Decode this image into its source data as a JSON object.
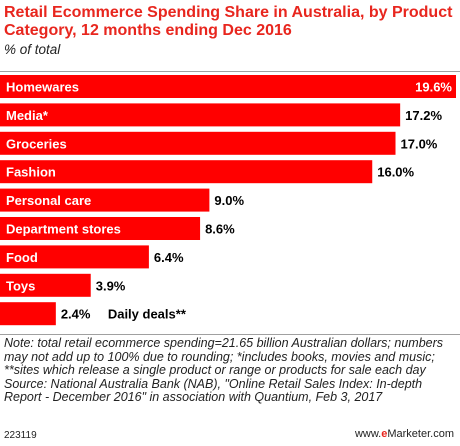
{
  "header": {
    "title": "Retail Ecommerce Spending Share in Australia, by Product Category, 12 months ending Dec 2016",
    "subtitle": "% of total"
  },
  "chart_data": {
    "type": "bar",
    "orientation": "horizontal",
    "title": "Retail Ecommerce Spending Share in Australia, by Product Category, 12 months ending Dec 2016",
    "subtitle": "% of total",
    "categories": [
      "Homewares",
      "Media*",
      "Groceries",
      "Fashion",
      "Personal care",
      "Department stores",
      "Food",
      "Toys",
      "Daily deals**"
    ],
    "values": [
      19.6,
      17.2,
      17.0,
      16.0,
      9.0,
      8.6,
      6.4,
      3.9,
      2.4
    ],
    "value_labels": [
      "19.6%",
      "17.2%",
      "17.0%",
      "16.0%",
      "9.0%",
      "8.6%",
      "6.4%",
      "3.9%",
      "2.4%"
    ],
    "xlim": [
      0,
      19.6
    ],
    "bar_color": "#ff0000",
    "grid": false,
    "legend": "none"
  },
  "footer": {
    "notes": "Note: total retail ecommerce spending=21.65 billion Australian dollars; numbers may not add up to 100% due to rounding; *includes books, movies and music; **sites which release a single product or range or products for sale each day",
    "source": "Source: National Australia Bank (NAB), \"Online Retail Sales Index: In-depth Report - December 2016\" in association with Quantium, Feb 3, 2017",
    "code": "223119",
    "site_prefix": "www.",
    "site_brand": "e",
    "site_suffix": "Marketer.com"
  }
}
